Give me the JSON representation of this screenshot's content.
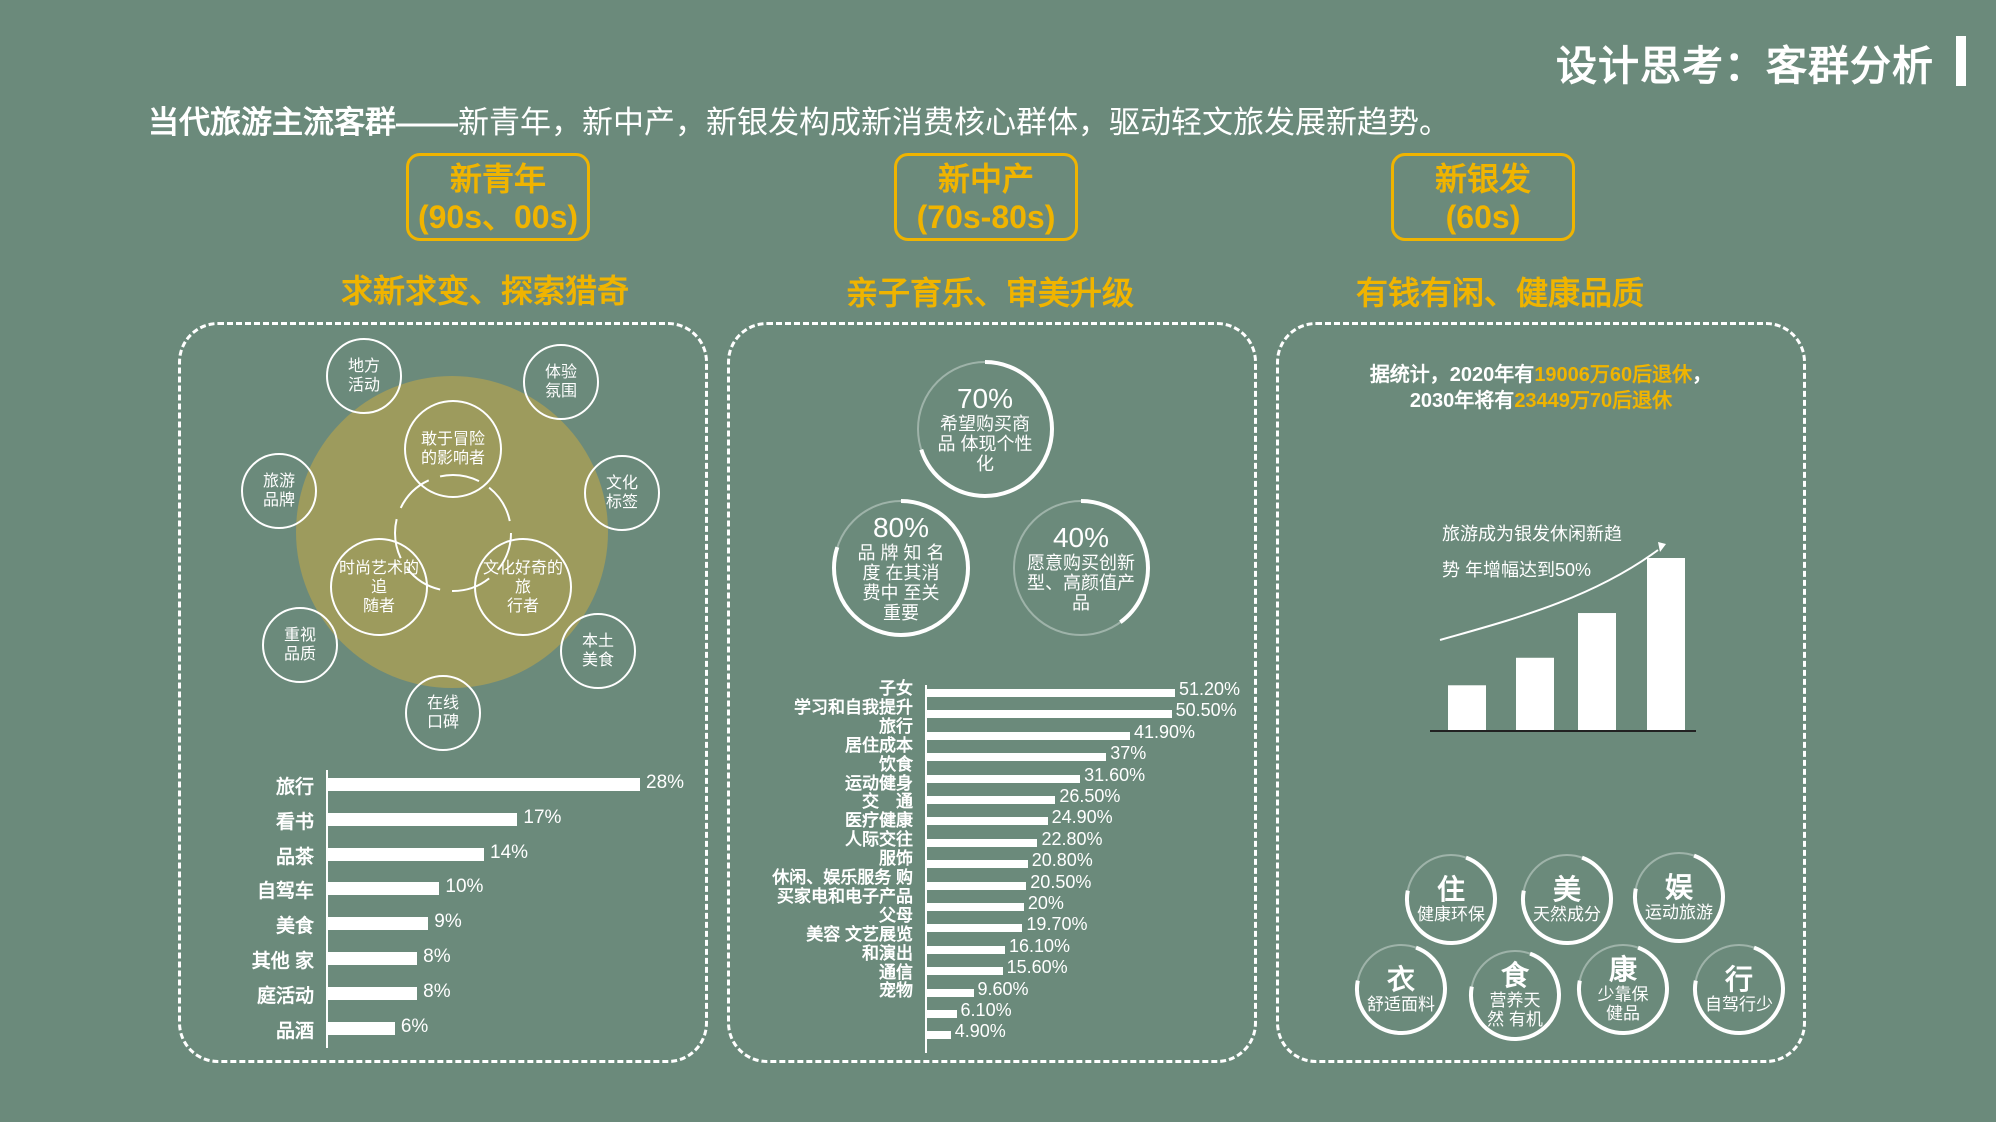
{
  "header": {
    "page_title": "设计思考：客群分析",
    "subtitle_bold": "当代旅游主流客群——",
    "subtitle_rest": "新青年，新中产，新银发构成新消费核心群体，驱动轻文旅发展新趋势。"
  },
  "colors": {
    "background": "#6b8a7b",
    "accent": "#f0b400",
    "venn": "#9d9b5d"
  },
  "groups": [
    {
      "name": "新青年",
      "age": "(90s、00s)",
      "theme": "求新求变、探索猎奇"
    },
    {
      "name": "新中产",
      "age": "(70s-80s)",
      "theme": "亲子育乐、审美升级"
    },
    {
      "name": "新银发",
      "age": "(60s)",
      "theme": "有钱有闲、健康品质"
    }
  ],
  "youth": {
    "outer_circles": [
      "地方\n活动",
      "体验\n氛围",
      "文化\n标签",
      "本土\n美食",
      "在线\n口碑",
      "重视\n品质",
      "旅游\n品牌"
    ],
    "inner_circles": [
      "敢于冒险\n的影响者",
      "文化好奇的旅\n行者",
      "时尚艺术的追\n随者"
    ],
    "bars": [
      {
        "label": "旅行",
        "value": "28%",
        "pct": 28
      },
      {
        "label": "看书",
        "value": "17%",
        "pct": 17
      },
      {
        "label": "品茶",
        "value": "14%",
        "pct": 14
      },
      {
        "label": "自驾车",
        "value": "10%",
        "pct": 10
      },
      {
        "label": "美食",
        "value": "9%",
        "pct": 9
      },
      {
        "label": "其他  家",
        "value": "8%",
        "pct": 8
      },
      {
        "label": "庭活动",
        "value": "8%",
        "pct": 8
      },
      {
        "label": "品酒",
        "value": "6%",
        "pct": 6
      }
    ]
  },
  "middle": {
    "stats": [
      {
        "pct": "70%",
        "text": "希望购买商\n品  体现个性\n化",
        "level": 0.7
      },
      {
        "pct": "80%",
        "text": "品 牌 知 名\n度   在其消\n费中    至关\n重要",
        "level": 0.8
      },
      {
        "pct": "40%",
        "text": "愿意购买创新\n型、高颜值产\n品",
        "level": 0.4
      }
    ],
    "bar_labels": [
      "子女",
      "学习和自我提升",
      "旅行",
      "居住成本",
      "饮食",
      "运动健身",
      "交　通",
      "医疗健康",
      "人际交往",
      "服饰",
      "休闲、娱乐服务  购",
      "买家电和电子产品",
      "父母",
      "美容  文艺展览",
      "和演出",
      "通信",
      "宠物"
    ],
    "bar_values": [
      {
        "value": "51.20%",
        "pct": 51.2
      },
      {
        "value": "50.50%",
        "pct": 50.5
      },
      {
        "value": "41.90%",
        "pct": 41.9
      },
      {
        "value": "37%",
        "pct": 37
      },
      {
        "value": "31.60%",
        "pct": 31.6
      },
      {
        "value": "26.50%",
        "pct": 26.5
      },
      {
        "value": "24.90%",
        "pct": 24.9
      },
      {
        "value": "22.80%",
        "pct": 22.8
      },
      {
        "value": "20.80%",
        "pct": 20.8
      },
      {
        "value": "20.50%",
        "pct": 20.5
      },
      {
        "value": "20%",
        "pct": 20
      },
      {
        "value": "19.70%",
        "pct": 19.7
      },
      {
        "value": "16.10%",
        "pct": 16.1
      },
      {
        "value": "15.60%",
        "pct": 15.6
      },
      {
        "value": "9.60%",
        "pct": 9.6
      },
      {
        "value": "6.10%",
        "pct": 6.1
      },
      {
        "value": "4.90%",
        "pct": 4.9
      }
    ]
  },
  "silver": {
    "note_line1_a": "据统计，2020年有",
    "note_line1_b": "19006万60后退休",
    "note_line1_c": "，",
    "note_line2_a": "2030年将有",
    "note_line2_b": "23449万70后退休",
    "trend_line1": "旅游成为银发休闲新趋",
    "trend_line2": "势  年增幅达到50%",
    "trend_bars": [
      0.26,
      0.42,
      0.68,
      1.0
    ],
    "life": [
      {
        "big": "住",
        "small": "健康环保"
      },
      {
        "big": "美",
        "small": "天然成分"
      },
      {
        "big": "娱",
        "small": "运动旅游"
      },
      {
        "big": "衣",
        "small": "舒适面料"
      },
      {
        "big": "食",
        "small": "营养天\n然  有机"
      },
      {
        "big": "康",
        "small": "少靠保\n健品"
      },
      {
        "big": "行",
        "small": "自驾行少"
      }
    ]
  }
}
